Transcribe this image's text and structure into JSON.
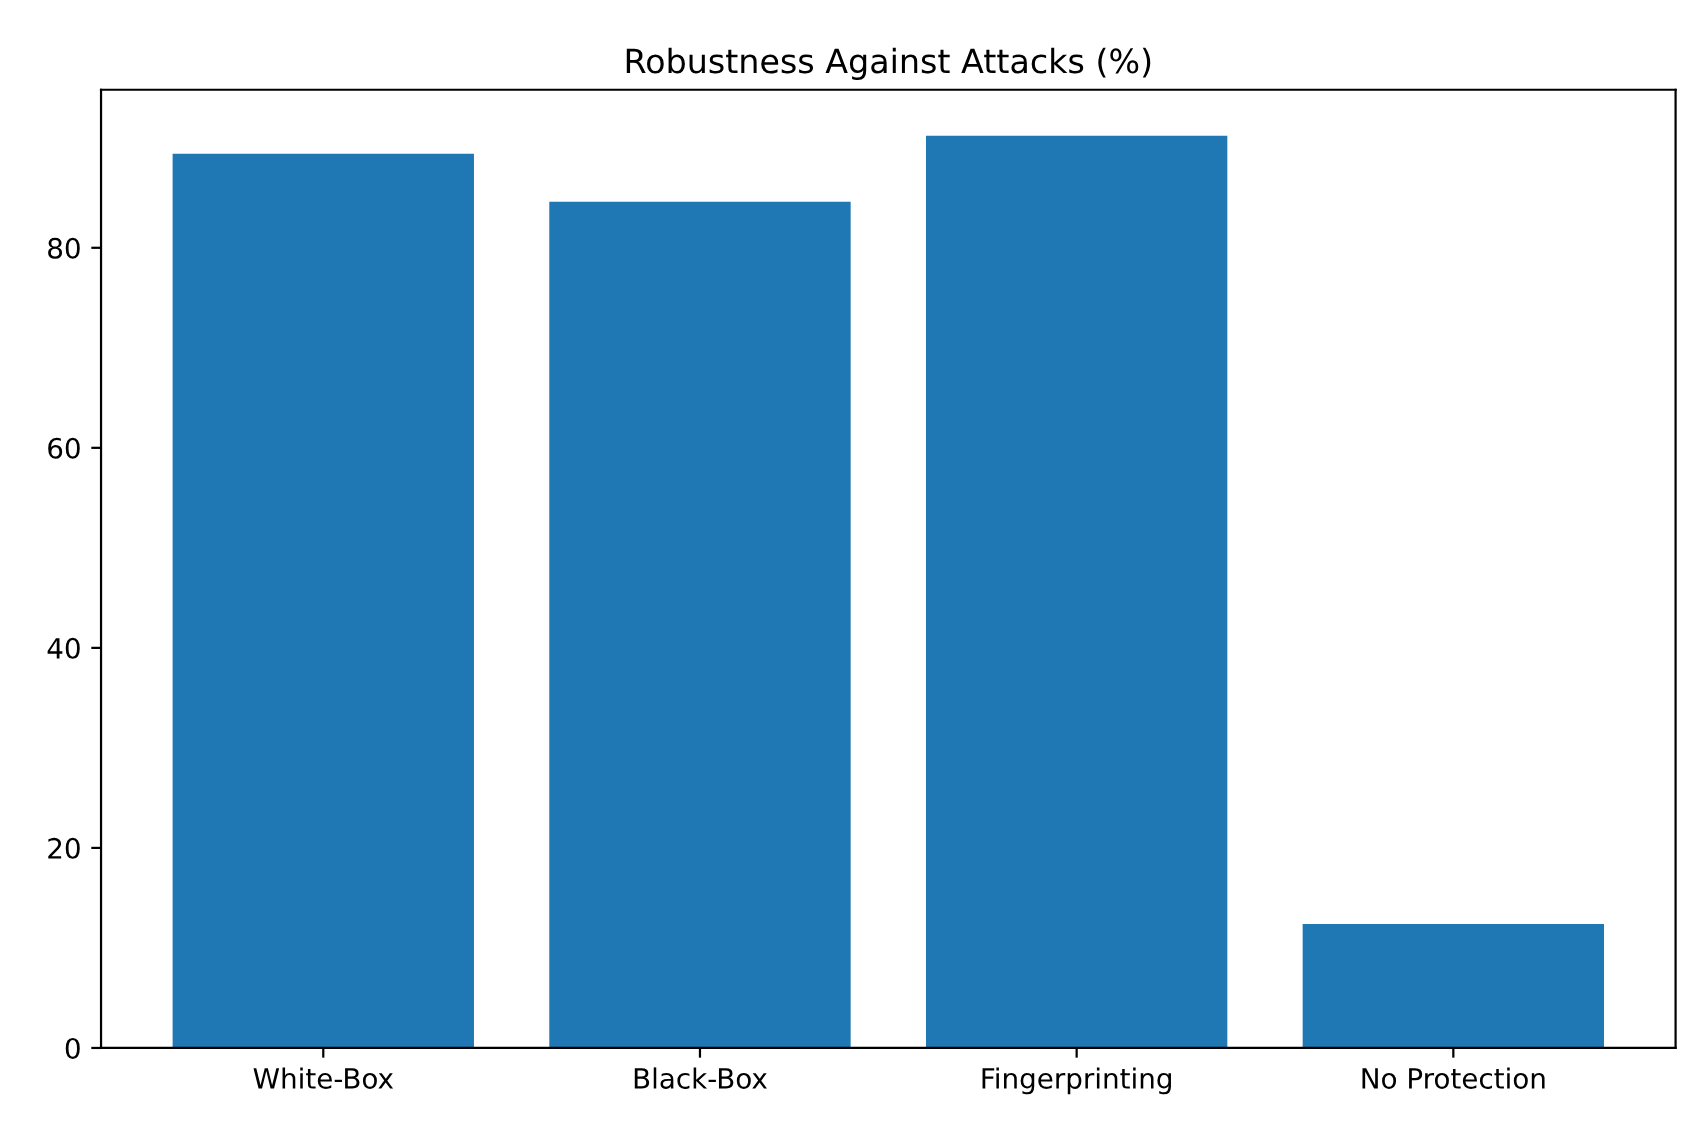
{
  "chart_data": {
    "type": "bar",
    "title": "Robustness Against Attacks (%)",
    "categories": [
      "White-Box",
      "Black-Box",
      "Fingerprinting",
      "No Protection"
    ],
    "values": [
      89.4,
      84.6,
      91.2,
      12.4
    ],
    "color": "#1f77b4",
    "ylim": [
      0,
      95.8
    ],
    "yticks": [
      0,
      20,
      40,
      60,
      80
    ],
    "grid": false
  }
}
